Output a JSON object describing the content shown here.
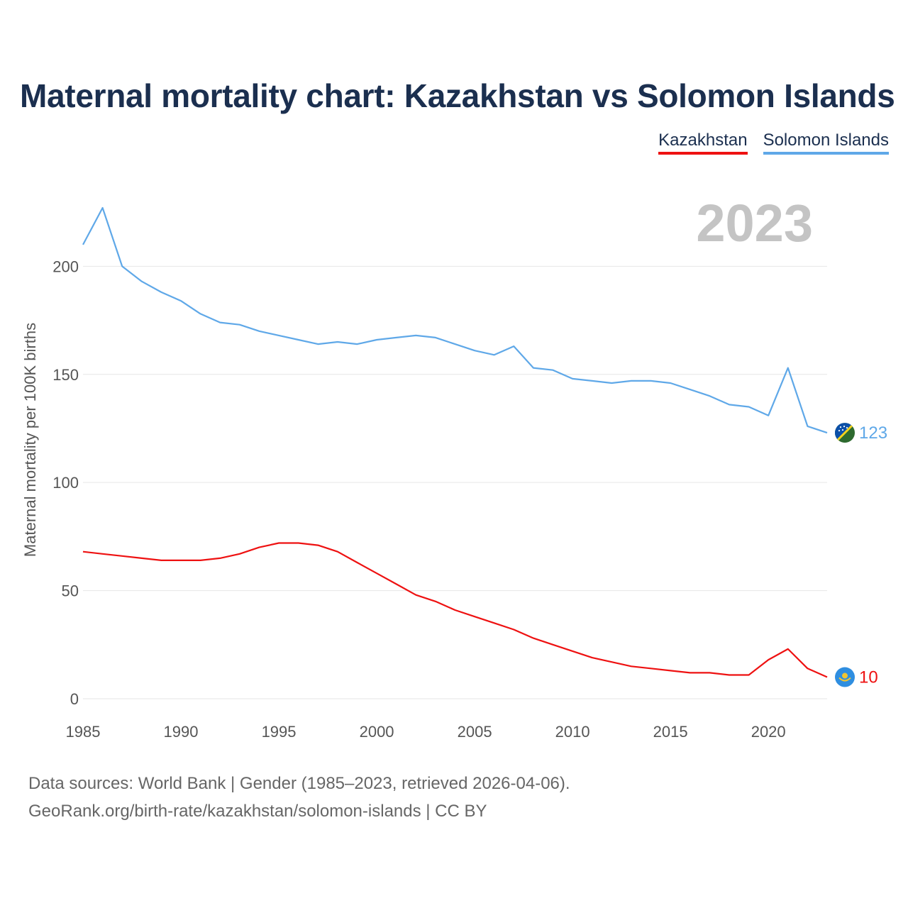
{
  "title": "Maternal mortality chart: Kazakhstan vs Solomon Islands",
  "legend": [
    {
      "label": "Kazakhstan",
      "color": "#ee1111"
    },
    {
      "label": "Solomon Islands",
      "color": "#5fa8e8"
    }
  ],
  "footer": {
    "line1": "Data sources: World Bank | Gender (1985–2023, retrieved 2026-04-06).",
    "line2": "GeoRank.org/birth-rate/kazakhstan/solomon-islands | CC BY"
  },
  "chart_data": {
    "type": "line",
    "title": "Maternal mortality chart: Kazakhstan vs Solomon Islands",
    "xlabel": "",
    "ylabel": "Maternal mortality per 100K births",
    "xlim": [
      1985,
      2023
    ],
    "ylim": [
      0,
      228
    ],
    "x_ticks": [
      1985,
      1990,
      1995,
      2000,
      2005,
      2010,
      2015,
      2020
    ],
    "y_ticks": [
      0,
      50,
      100,
      150,
      200
    ],
    "grid": true,
    "year_label": "2023",
    "x": [
      1985,
      1986,
      1987,
      1988,
      1989,
      1990,
      1991,
      1992,
      1993,
      1994,
      1995,
      1996,
      1997,
      1998,
      1999,
      2000,
      2001,
      2002,
      2003,
      2004,
      2005,
      2006,
      2007,
      2008,
      2009,
      2010,
      2011,
      2012,
      2013,
      2014,
      2015,
      2016,
      2017,
      2018,
      2019,
      2020,
      2021,
      2022,
      2023
    ],
    "series": [
      {
        "name": "Kazakhstan",
        "color": "#ee1111",
        "end_label": "10",
        "flag_icon": "kazakhstan-flag-icon",
        "values": [
          68,
          67,
          66,
          65,
          64,
          64,
          64,
          65,
          67,
          70,
          72,
          72,
          71,
          68,
          63,
          58,
          53,
          48,
          45,
          41,
          38,
          35,
          32,
          28,
          25,
          22,
          19,
          17,
          15,
          14,
          13,
          12,
          12,
          11,
          11,
          18,
          23,
          14,
          10
        ]
      },
      {
        "name": "Solomon Islands",
        "color": "#5fa8e8",
        "end_label": "123",
        "flag_icon": "solomon-islands-flag-icon",
        "values": [
          210,
          227,
          200,
          193,
          188,
          184,
          178,
          174,
          173,
          170,
          168,
          166,
          164,
          165,
          164,
          166,
          167,
          168,
          167,
          164,
          161,
          159,
          163,
          153,
          152,
          148,
          147,
          146,
          147,
          147,
          146,
          143,
          140,
          136,
          135,
          131,
          153,
          126,
          123
        ]
      }
    ]
  }
}
